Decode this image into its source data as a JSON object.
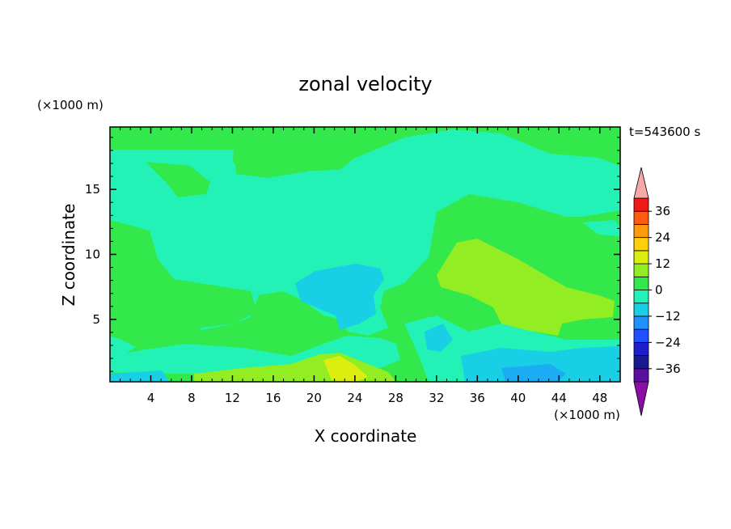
{
  "chart_data": {
    "type": "heatmap",
    "title": "zonal velocity",
    "xlabel": "X coordinate",
    "ylabel": "Z coordinate",
    "x_unit": "(×1000 m)",
    "y_unit": "(×1000 m)",
    "time_label": "t=543600 s",
    "xlim": [
      0,
      50
    ],
    "ylim": [
      0.2,
      19.8
    ],
    "x_ticks": [
      4,
      8,
      12,
      16,
      20,
      24,
      28,
      32,
      36,
      40,
      44,
      48
    ],
    "y_ticks": [
      5,
      10,
      15
    ],
    "colorbar": {
      "levels": [
        -42,
        -36,
        -30,
        -24,
        -18,
        -12,
        -6,
        0,
        6,
        12,
        18,
        24,
        30,
        36,
        42
      ],
      "tick_labels": [
        -36,
        -24,
        -12,
        0,
        12,
        24,
        36
      ],
      "colors": [
        "#5a0f9e",
        "#1a1a8f",
        "#1e1ecc",
        "#2050ff",
        "#1e90ff",
        "#19cfe6",
        "#22f2b6",
        "#33e84a",
        "#92ee22",
        "#dcee10",
        "#ffd00a",
        "#ff9a0a",
        "#ff5a12",
        "#f01818"
      ],
      "under_color": "#8b0fa6",
      "over_color": "#f6aaa8"
    },
    "grid": false,
    "field_summary": "Zonal velocity mostly between -6 and +12; weak negative values near surface around x=20-45 km, positive core near x=34-46 km, z=5-10 km"
  }
}
